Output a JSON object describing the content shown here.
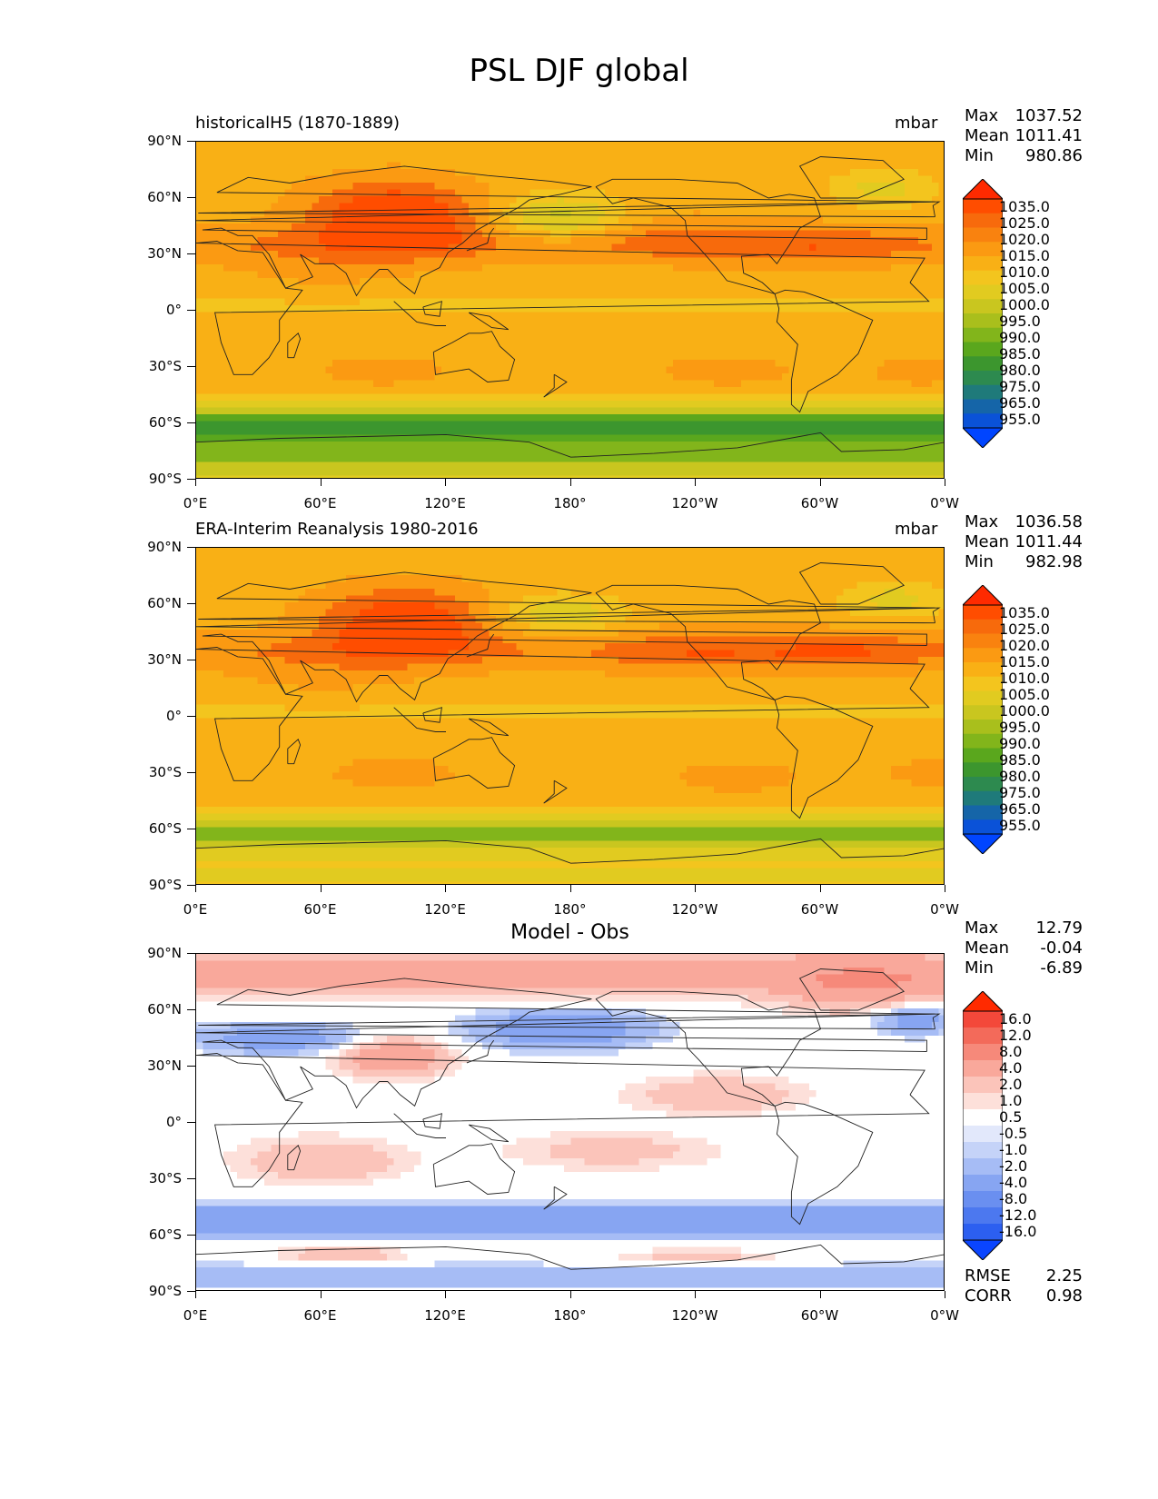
{
  "title": "PSL DJF global",
  "axis": {
    "lat_labels": [
      "90°N",
      "60°N",
      "30°N",
      "0°",
      "30°S",
      "60°S",
      "90°S"
    ],
    "lon_labels": [
      "0°E",
      "60°E",
      "120°E",
      "180°",
      "120°W",
      "60°W",
      "0°W"
    ]
  },
  "panels": [
    {
      "subtitle": "historicalH5 (1870-1889)",
      "units": "mbar",
      "stats": [
        {
          "label": "Max",
          "value": "1037.52"
        },
        {
          "label": "Mean",
          "value": "1011.41"
        },
        {
          "label": "Min",
          "value": "980.86"
        }
      ],
      "colorbar": {
        "labels": [
          "1035.0",
          "1025.0",
          "1020.0",
          "1015.0",
          "1010.0",
          "1005.0",
          "1000.0",
          "995.0",
          "990.0",
          "985.0",
          "980.0",
          "975.0",
          "965.0",
          "955.0"
        ],
        "colors": [
          "#ff2a00",
          "#ff4d00",
          "#f76a0c",
          "#f9820f",
          "#fb9a12",
          "#f9b015",
          "#f3c51e",
          "#e1cb20",
          "#c9c61f",
          "#a9bf1c",
          "#82b51b",
          "#5aa71d",
          "#3c962e",
          "#2d8a4f",
          "#1f7a7a",
          "#1565a8",
          "#0a52d8",
          "#0045ff"
        ]
      },
      "field": "model"
    },
    {
      "subtitle": "ERA-Interim Reanalysis 1980-2016",
      "units": "mbar",
      "stats": [
        {
          "label": "Max",
          "value": "1036.58"
        },
        {
          "label": "Mean",
          "value": "1011.44"
        },
        {
          "label": "Min",
          "value": "982.98"
        }
      ],
      "colorbar": {
        "labels": [
          "1035.0",
          "1025.0",
          "1020.0",
          "1015.0",
          "1010.0",
          "1005.0",
          "1000.0",
          "995.0",
          "990.0",
          "985.0",
          "980.0",
          "975.0",
          "965.0",
          "955.0"
        ],
        "colors": [
          "#ff2a00",
          "#ff4d00",
          "#f76a0c",
          "#f9820f",
          "#fb9a12",
          "#f9b015",
          "#f3c51e",
          "#e1cb20",
          "#c9c61f",
          "#a9bf1c",
          "#82b51b",
          "#5aa71d",
          "#3c962e",
          "#2d8a4f",
          "#1f7a7a",
          "#1565a8",
          "#0a52d8",
          "#0045ff"
        ]
      },
      "field": "obs"
    },
    {
      "centertitle": "Model - Obs",
      "stats": [
        {
          "label": "Max",
          "value": "12.79"
        },
        {
          "label": "Mean",
          "value": "-0.04"
        },
        {
          "label": "Min",
          "value": "-6.89"
        }
      ],
      "colorbar": {
        "labels": [
          "16.0",
          "12.0",
          "8.0",
          "4.0",
          "2.0",
          "1.0",
          "0.5",
          "-0.5",
          "-1.0",
          "-2.0",
          "-4.0",
          "-8.0",
          "-12.0",
          "-16.0"
        ],
        "colors": [
          "#ff2a00",
          "#f3483a",
          "#f36a5a",
          "#f6897a",
          "#f9a89b",
          "#fbc4ba",
          "#fde0da",
          "#ffffff",
          "#e2e8fb",
          "#c5d3f8",
          "#a6bcf5",
          "#87a5f2",
          "#6a8ff0",
          "#4c78ef",
          "#2c5ff0",
          "#0a45ff"
        ]
      },
      "field": "diff",
      "footer": [
        {
          "label": "RMSE",
          "value": "2.25"
        },
        {
          "label": "CORR",
          "value": "0.98"
        }
      ]
    }
  ],
  "chart_data": [
    {
      "type": "heatmap",
      "title": "historicalH5 (1870-1889)",
      "units": "mbar",
      "xlim": [
        0,
        360
      ],
      "ylim": [
        -90,
        90
      ],
      "max": 1037.52,
      "mean": 1011.41,
      "min": 980.86,
      "levels": [
        955,
        965,
        975,
        980,
        985,
        990,
        995,
        1000,
        1005,
        1010,
        1015,
        1020,
        1025,
        1035
      ]
    },
    {
      "type": "heatmap",
      "title": "ERA-Interim Reanalysis 1980-2016",
      "units": "mbar",
      "xlim": [
        0,
        360
      ],
      "ylim": [
        -90,
        90
      ],
      "max": 1036.58,
      "mean": 1011.44,
      "min": 982.98,
      "levels": [
        955,
        965,
        975,
        980,
        985,
        990,
        995,
        1000,
        1005,
        1010,
        1015,
        1020,
        1025,
        1035
      ]
    },
    {
      "type": "heatmap",
      "title": "Model - Obs",
      "xlim": [
        0,
        360
      ],
      "ylim": [
        -90,
        90
      ],
      "max": 12.79,
      "mean": -0.04,
      "min": -6.89,
      "rmse": 2.25,
      "corr": 0.98,
      "levels": [
        -16,
        -12,
        -8,
        -4,
        -2,
        -1,
        -0.5,
        0.5,
        1,
        2,
        4,
        8,
        12,
        16
      ]
    }
  ]
}
